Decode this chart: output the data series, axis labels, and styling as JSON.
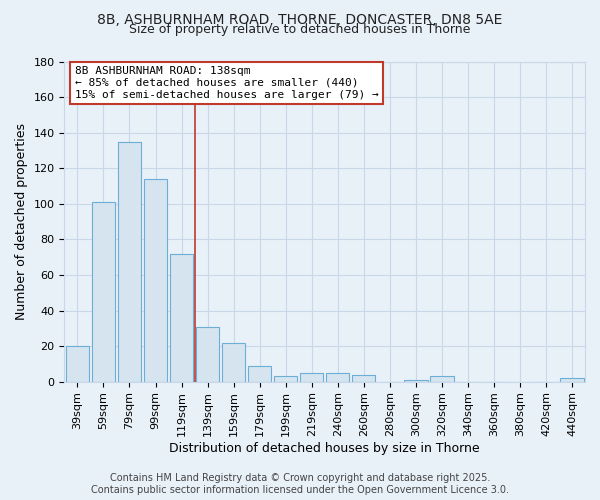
{
  "title_line1": "8B, ASHBURNHAM ROAD, THORNE, DONCASTER, DN8 5AE",
  "title_line2": "Size of property relative to detached houses in Thorne",
  "xlabel": "Distribution of detached houses by size in Thorne",
  "ylabel": "Number of detached properties",
  "categories": [
    "39sqm",
    "59sqm",
    "79sqm",
    "99sqm",
    "119sqm",
    "139sqm",
    "159sqm",
    "179sqm",
    "199sqm",
    "219sqm",
    "240sqm",
    "260sqm",
    "280sqm",
    "300sqm",
    "320sqm",
    "340sqm",
    "360sqm",
    "380sqm",
    "420sqm",
    "440sqm"
  ],
  "values": [
    20,
    101,
    135,
    114,
    72,
    31,
    22,
    9,
    3,
    5,
    5,
    4,
    0,
    1,
    3,
    0,
    0,
    0,
    0,
    2
  ],
  "bar_color": "#d6e4f0",
  "bar_edge_color": "#6baed6",
  "highlight_line_color": "#c0392b",
  "annotation_box_text": "8B ASHBURNHAM ROAD: 138sqm\n← 85% of detached houses are smaller (440)\n15% of semi-detached houses are larger (79) →",
  "annotation_box_color": "#ffffff",
  "annotation_box_edge_color": "#c0392b",
  "ylim": [
    0,
    180
  ],
  "yticks": [
    0,
    20,
    40,
    60,
    80,
    100,
    120,
    140,
    160,
    180
  ],
  "grid_color": "#c8d8e8",
  "plot_bg_color": "#e8f0f8",
  "fig_bg_color": "#e8f0f8",
  "footer_text": "Contains HM Land Registry data © Crown copyright and database right 2025.\nContains public sector information licensed under the Open Government Licence 3.0.",
  "title_fontsize": 10,
  "subtitle_fontsize": 9,
  "axis_label_fontsize": 9,
  "tick_fontsize": 8,
  "annotation_fontsize": 8,
  "footer_fontsize": 7
}
